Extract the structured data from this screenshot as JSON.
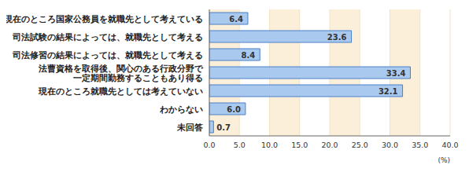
{
  "chart_data": {
    "type": "bar",
    "orientation": "horizontal",
    "categories": [
      "現在のところ国家公務員を就職先として考えている",
      "司法試験の結果によっては、就職先として考える",
      "司法修習の結果によっては、就職先として考える",
      "法曹資格を取得後、関心のある行政分野で\n一定期間勤務することもあり得る",
      "現在のところ就職先としては考えていない",
      "わからない",
      "未回答"
    ],
    "values": [
      6.4,
      23.6,
      8.4,
      33.4,
      32.1,
      6.0,
      0.7
    ],
    "value_labels": [
      "6.4",
      "23.6",
      "8.4",
      "33.4",
      "32.1",
      "6.0",
      "0.7"
    ],
    "data_labels": true,
    "color": "#a9c9ee",
    "xlim": [
      0,
      40
    ],
    "xticks": [
      {
        "value": 0,
        "label": "0.0"
      },
      {
        "value": 5,
        "label": "5.0"
      },
      {
        "value": 10,
        "label": "10.0"
      },
      {
        "value": 15,
        "label": "15.0"
      },
      {
        "value": 20,
        "label": "20.0"
      },
      {
        "value": 25,
        "label": "25.0"
      },
      {
        "value": 30,
        "label": "30.0"
      },
      {
        "value": 35,
        "label": "35.0"
      },
      {
        "value": 40,
        "label": "40.0"
      }
    ],
    "x_label": "(%)",
    "grid": true
  }
}
